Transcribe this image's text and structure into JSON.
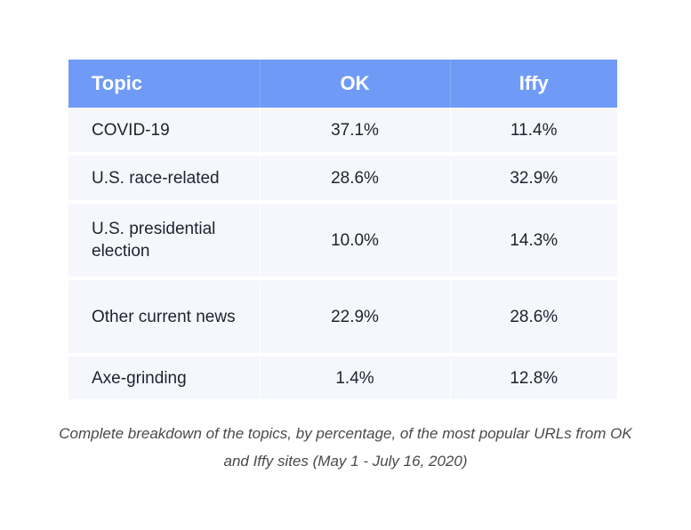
{
  "chart_data": {
    "type": "table",
    "columns": [
      "Topic",
      "OK",
      "Iffy"
    ],
    "rows": [
      {
        "topic": "COVID-19",
        "ok": "37.1%",
        "iffy": "11.4%"
      },
      {
        "topic": "U.S. race-related",
        "ok": "28.6%",
        "iffy": "32.9%"
      },
      {
        "topic": "U.S. presidential election",
        "ok": "10.0%",
        "iffy": "14.3%"
      },
      {
        "topic": "Other current news",
        "ok": "22.9%",
        "iffy": "28.6%"
      },
      {
        "topic": "Axe-grinding",
        "ok": "1.4%",
        "iffy": "12.8%"
      }
    ],
    "caption": "Complete breakdown of the topics, by percentage, of the most popular URLs from OK and Iffy sites (May 1 - July 16, 2020)"
  },
  "colors": {
    "header_bg": "#6f9bf7",
    "header_text": "#ffffff",
    "row_bg": "#f5f7fc"
  }
}
